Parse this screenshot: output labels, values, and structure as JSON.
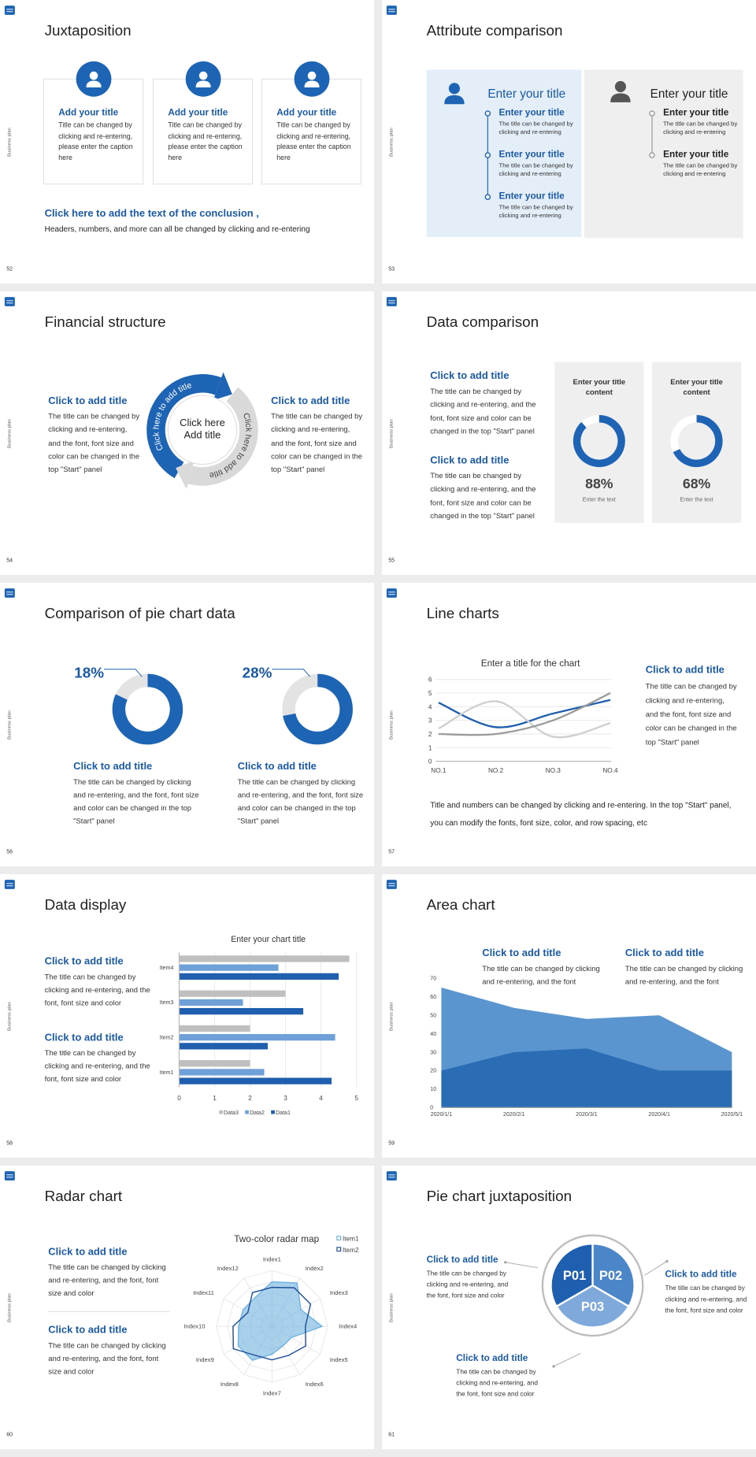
{
  "slides": [
    {
      "number": "52",
      "side_label": "Business plan",
      "title": "Juxtaposition",
      "cards": [
        {
          "title": "Add your title",
          "text": "Title can be changed by clicking and re-entering, please enter the caption here"
        },
        {
          "title": "Add your title",
          "text": "Title can be changed by clicking and re-entering, please enter the caption here"
        },
        {
          "title": "Add your title",
          "text": "Title can be changed by clicking and re-entering, please enter the caption here"
        }
      ],
      "conclusion": "Click here to add the text of the conclusion ,",
      "note": "Headers, numbers, and more can all be changed by clicking and re-entering"
    },
    {
      "number": "53",
      "side_label": "Business plan",
      "title": "Attribute comparison",
      "columns": [
        {
          "heading": "Enter your title",
          "items": [
            {
              "title": "Enter your title",
              "text": "The title can be changed by clicking and re-entering"
            },
            {
              "title": "Enter your title",
              "text": "The title can be changed by clicking and re-entering"
            },
            {
              "title": "Enter your title",
              "text": "The title can be changed by clicking and re-entering"
            }
          ]
        },
        {
          "heading": "Enter your title",
          "items": [
            {
              "title": "Enter your title",
              "text": "The title can be changed by clicking and re-entering"
            },
            {
              "title": "Enter your title",
              "text": "The title can be changed by clicking and re-entering"
            }
          ]
        }
      ]
    },
    {
      "number": "54",
      "side_label": "Business plan",
      "title": "Financial structure",
      "blocks": [
        {
          "title": "Click to add title",
          "text": "The title can be changed by clicking and re-entering, and the font, font size and color can be changed in the top \"Start\" panel"
        },
        {
          "title": "Click to add title",
          "text": "The title can be changed by clicking and re-entering, and the font, font size and color can be changed in the top \"Start\" panel"
        }
      ],
      "cycle": {
        "center": "Click here Add title",
        "labels": [
          "Click here to add title",
          "Click here to add title"
        ]
      }
    },
    {
      "number": "55",
      "side_label": "Business plan",
      "title": "Data comparison",
      "blocks": [
        {
          "title": "Click to add title",
          "text": "The title can be changed by clicking and re-entering, and the font, font size and color can be changed in the top \"Start\" panel"
        },
        {
          "title": "Click to add title",
          "text": "The title can be changed by clicking and re-entering, and the font, font size and color can be changed in the top \"Start\" panel"
        }
      ],
      "chart": {
        "type": "gauge",
        "color": "#1f64b4",
        "items": [
          {
            "title": "Enter your title content",
            "value": 88,
            "value_label": "88%",
            "caption": "Enter the text"
          },
          {
            "title": "Enter your title content",
            "value": 68,
            "value_label": "68%",
            "caption": "Enter the text"
          }
        ]
      }
    },
    {
      "number": "56",
      "side_label": "Business plan",
      "title": "Comparison of pie chart data",
      "chart": {
        "type": "donut",
        "color": "#e3e3e3",
        "items": [
          {
            "value": 18,
            "value_label": "18%",
            "title": "Click to add title",
            "text": "The title can be changed by clicking and re-entering, and the font, font size and color can be changed in the top \"Start\" panel"
          },
          {
            "value": 28,
            "value_label": "28%",
            "title": "Click to add title",
            "text": "The title can be changed by clicking and re-entering, and the font, font size and color can be changed in the top \"Start\" panel"
          }
        ]
      }
    },
    {
      "number": "57",
      "side_label": "Business plan",
      "title": "Line charts",
      "chart": {
        "type": "line",
        "title": "Enter a title for the chart",
        "categories": [
          "NO.1",
          "NO.2",
          "NO.3",
          "NO.4"
        ],
        "series": [
          {
            "color": "#1f5fae",
            "values": [
              4.3,
              2.5,
              3.5,
              4.5
            ]
          },
          {
            "color": "#cfcfcf",
            "values": [
              2.4,
              4.4,
              1.8,
              2.8
            ]
          },
          {
            "color": "#9b9b9b",
            "values": [
              2,
              2,
              3,
              5
            ]
          }
        ],
        "ylim": [
          0,
          6
        ],
        "yticks": [
          0,
          1,
          2,
          3,
          4,
          5,
          6
        ],
        "grid": true
      },
      "blocks": [
        {
          "title": "Click to add title",
          "text": "The title can be changed by clicking and re-entering, and the font, font size and color can be changed in the top \"Start\" panel"
        }
      ],
      "note": "Title and numbers can be changed by clicking and re-entering. In the top \"Start\" panel, you can modify the fonts, font size, color, and row spacing, etc"
    },
    {
      "number": "58",
      "side_label": "Business plan",
      "title": "Data display",
      "blocks": [
        {
          "title": "Click to add title",
          "text": "The title can be changed by clicking and re-entering, and the font, font size and color"
        },
        {
          "title": "Click to add title",
          "text": "The title can be changed by clicking and re-entering, and the font, font size and color"
        }
      ],
      "chart": {
        "type": "bar",
        "title": "Enter your chart title",
        "categories": [
          "Item1",
          "Item2",
          "Item3",
          "Item4"
        ],
        "series": [
          {
            "name": "Data3",
            "color": "#bfbfbf",
            "values": [
              2,
              2,
              3,
              4.8
            ]
          },
          {
            "name": "Data2",
            "color": "#6fa0d8",
            "values": [
              2.4,
              4.4,
              1.8,
              2.8
            ]
          },
          {
            "name": "Data1",
            "color": "#1f5fae",
            "values": [
              4.3,
              2.5,
              3.5,
              4.5
            ]
          }
        ],
        "xlim": [
          0,
          5
        ],
        "xticks": [
          0,
          1,
          2,
          3,
          4,
          5
        ],
        "grid": true,
        "legend": "bottom"
      }
    },
    {
      "number": "59",
      "side_label": "Business plan",
      "title": "Area chart",
      "blocks": [
        {
          "title": "Click to add title",
          "text": "The title can be changed by clicking and re-entering, and the font"
        },
        {
          "title": "Click to add title",
          "text": "The title can be changed by clicking and re-entering, and the font"
        }
      ],
      "chart": {
        "type": "area",
        "categories": [
          "2020/1/1",
          "2020/2/1",
          "2020/3/1",
          "2020/4/1",
          "2020/5/1"
        ],
        "series": [
          {
            "color": "#5b95cf",
            "values": [
              65,
              54,
              48,
              50,
              30
            ]
          },
          {
            "color": "#2a6db5",
            "values": [
              20,
              30,
              32,
              20,
              20
            ]
          }
        ],
        "ylim": [
          0,
          70
        ],
        "yticks": [
          0,
          10,
          20,
          30,
          40,
          50,
          60,
          70
        ]
      }
    },
    {
      "number": "60",
      "side_label": "Business plan",
      "title": "Radar chart",
      "blocks": [
        {
          "title": "Click to add title",
          "text": "The title can be changed by clicking and re-entering, and the font, font size and color"
        },
        {
          "title": "Click to add title",
          "text": "The title can be changed by clicking and re-entering, and the font, font size and color"
        }
      ],
      "chart": {
        "type": "radar",
        "title": "Two-color radar map",
        "categories": [
          "Index1",
          "Index2",
          "Index3",
          "Index4",
          "Index5",
          "Index6",
          "Index7",
          "Index8",
          "Index9",
          "Index10",
          "Index11",
          "Index12"
        ],
        "series": [
          {
            "name": "Item1",
            "color": "#6fb3e0",
            "values": [
              4,
              4.5,
              3,
              4.5,
              2,
              2,
              2.5,
              3.5,
              3.5,
              3,
              3,
              3
            ]
          },
          {
            "name": "Item2",
            "color": "#1f4e99",
            "values": [
              3.5,
              4,
              4,
              3,
              3.5,
              3,
              3,
              3,
              4,
              3.5,
              2.5,
              3.5
            ]
          }
        ],
        "rlim": [
          0,
          5
        ],
        "legend": "top-right"
      }
    },
    {
      "number": "61",
      "side_label": "Business plan",
      "title": "Pie chart juxtaposition",
      "segments": [
        "P01",
        "P02",
        "P03"
      ],
      "blocks": [
        {
          "title": "Click to add title",
          "text": "The title can be changed by clicking and re-entering, and the font, font size and color"
        },
        {
          "title": "Click to add title",
          "text": "The title can be changed by clicking and re-entering, and the font, font size and color"
        },
        {
          "title": "Click to add title",
          "text": "The title can be changed by clicking and re-entering, and the font, font size and color"
        }
      ]
    }
  ]
}
